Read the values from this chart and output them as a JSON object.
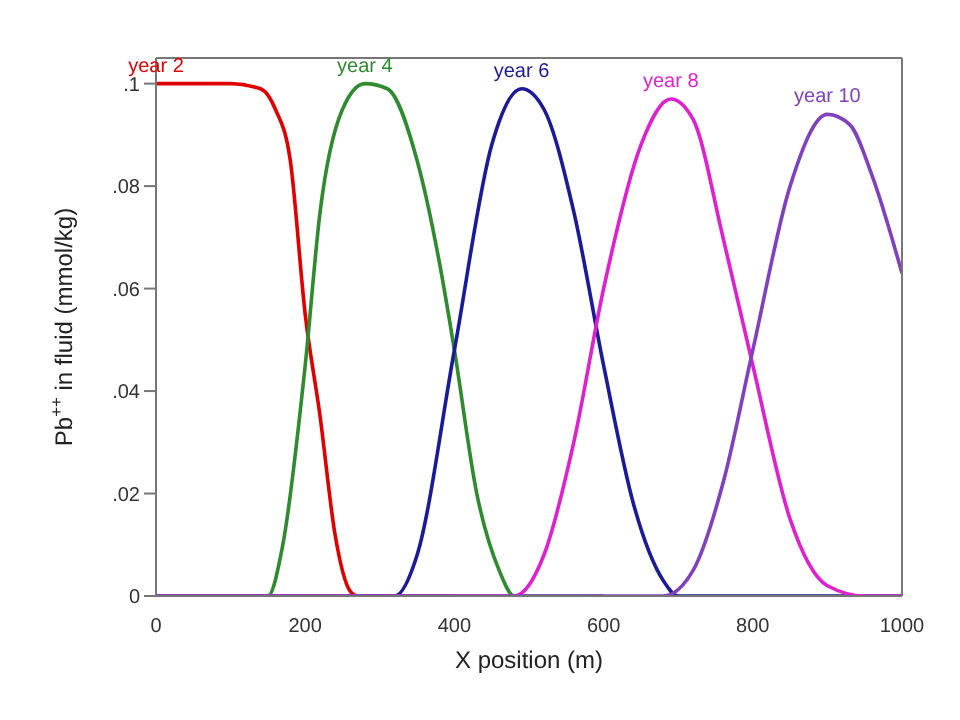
{
  "chart_data": {
    "type": "line",
    "xlabel": "X position (m)",
    "ylabel": "Pb$^{++}$ in fluid (mmol/kg)",
    "xlim": [
      0,
      1000
    ],
    "xticks": [
      0,
      200,
      400,
      600,
      800,
      1000
    ],
    "ylim": [
      0,
      0.105
    ],
    "yticks": [
      {
        "value": 0,
        "label": "0"
      },
      {
        "value": 0.02,
        "label": ".02"
      },
      {
        "value": 0.04,
        "label": ".04"
      },
      {
        "value": 0.06,
        "label": ".06"
      },
      {
        "value": 0.08,
        "label": ".08"
      },
      {
        "value": 0.1,
        "label": ".1"
      }
    ],
    "grid": false,
    "legend": false,
    "marker": "none",
    "line_style": "solid",
    "series": [
      {
        "name": "year 2",
        "color": "#e00000",
        "x": [
          0,
          100,
          140,
          160,
          180,
          200,
          220,
          240,
          260,
          270,
          400
        ],
        "values": [
          0.1,
          0.1,
          0.099,
          0.095,
          0.085,
          0.055,
          0.035,
          0.012,
          0.001,
          0,
          0
        ]
      },
      {
        "name": "year 4",
        "color": "#2e8b2e",
        "x": [
          0,
          150,
          170,
          200,
          220,
          250,
          280,
          310,
          350,
          380,
          400,
          430,
          460,
          480,
          600
        ],
        "values": [
          0,
          0,
          0.01,
          0.045,
          0.075,
          0.095,
          0.1,
          0.099,
          0.085,
          0.065,
          0.048,
          0.02,
          0.005,
          0,
          0
        ]
      },
      {
        "name": "year 6",
        "color": "#1a1a9a",
        "x": [
          0,
          320,
          350,
          400,
          450,
          490,
          520,
          560,
          600,
          640,
          680,
          700,
          800,
          1000
        ],
        "values": [
          0,
          0,
          0.008,
          0.048,
          0.088,
          0.099,
          0.095,
          0.075,
          0.045,
          0.018,
          0.003,
          0,
          0,
          0
        ]
      },
      {
        "name": "year 8",
        "color": "#e020d0",
        "x": [
          0,
          480,
          520,
          560,
          600,
          650,
          690,
          720,
          760,
          800,
          850,
          900,
          950,
          1000
        ],
        "values": [
          0,
          0,
          0.008,
          0.03,
          0.06,
          0.088,
          0.097,
          0.093,
          0.07,
          0.045,
          0.015,
          0.002,
          0,
          0
        ]
      },
      {
        "name": "year 10",
        "color": "#8040c0",
        "x": [
          0,
          680,
          720,
          760,
          800,
          850,
          900,
          930,
          960,
          1000
        ],
        "values": [
          0,
          0,
          0.005,
          0.022,
          0.048,
          0.08,
          0.094,
          0.092,
          0.082,
          0.063
        ]
      }
    ]
  }
}
